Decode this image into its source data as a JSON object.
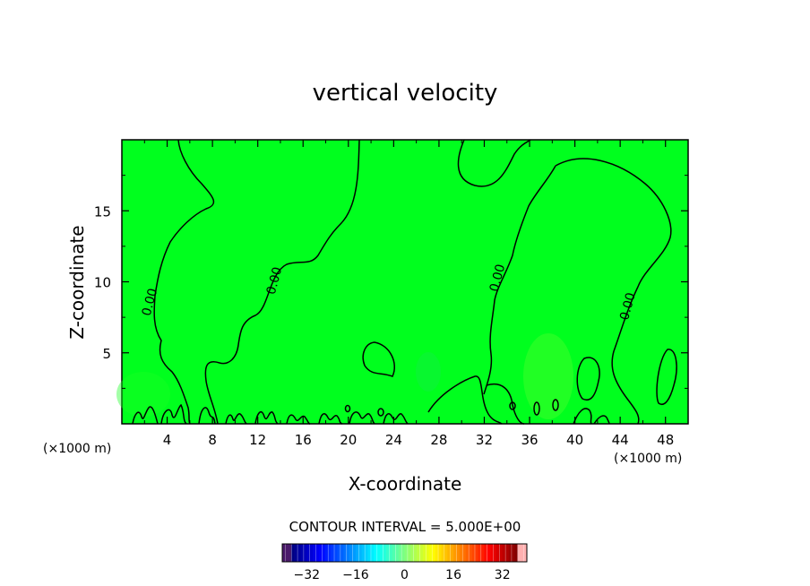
{
  "chart_data": {
    "type": "heatmap",
    "title": "vertical velocity",
    "xlabel": "X-coordinate",
    "ylabel": "Z-coordinate",
    "x_unit_left": "(×1000 m)",
    "x_unit_right": "(×1000 m)",
    "xlim": [
      0,
      50
    ],
    "ylim": [
      0,
      20
    ],
    "x_ticks": [
      4,
      8,
      12,
      16,
      20,
      24,
      28,
      32,
      36,
      40,
      44,
      48
    ],
    "y_ticks": [
      5,
      10,
      15
    ],
    "field_color": "#00ff1e",
    "contour_value_labels": [
      {
        "text": "0.00",
        "x": 2.8,
        "y": 8.5
      },
      {
        "text": "0.00",
        "x": 13.8,
        "y": 10.0
      },
      {
        "text": "0.00",
        "x": 33.5,
        "y": 10.2
      },
      {
        "text": "0.00",
        "x": 45.0,
        "y": 8.2
      }
    ],
    "contour_interval": "CONTOUR INTERVAL = 5.000E+00",
    "colorbar": {
      "ticks": [
        -32,
        -16,
        0,
        16,
        32
      ],
      "vmin": -40,
      "vmax": 40
    }
  }
}
